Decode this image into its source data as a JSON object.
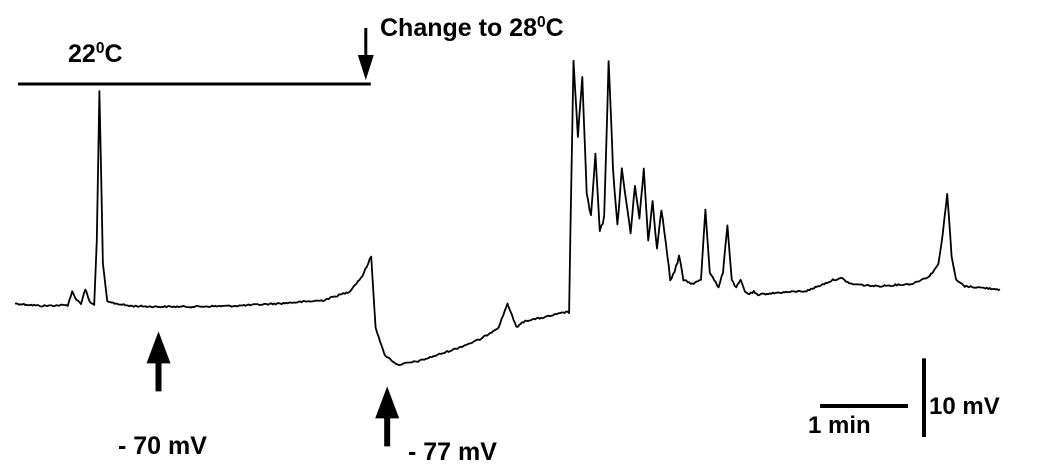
{
  "chart_data": {
    "type": "line",
    "title": "",
    "xlabel": "",
    "ylabel": "",
    "x_unit": "min",
    "y_unit": "mV",
    "x_range": [
      0,
      11.2
    ],
    "y_range": [
      -80,
      -37
    ],
    "temperature_periods": [
      {
        "label": "22",
        "label_unit": "C",
        "start": 0,
        "end": 4.0
      }
    ],
    "events": [
      {
        "label": "Change to 28",
        "label_unit": "C",
        "time": 4.0
      }
    ],
    "membrane_potential_marks": [
      {
        "label": "- 70 mV",
        "time": 1.7,
        "value": -70
      },
      {
        "label": "- 77 mV",
        "time": 4.3,
        "value": -77
      }
    ],
    "scale_bars": {
      "time": {
        "label": "1 min",
        "value": 1
      },
      "voltage": {
        "label": "10 mV",
        "value": 10
      }
    },
    "series": [
      {
        "x": [
          0,
          0.3,
          0.6,
          0.65,
          0.7,
          0.75,
          0.8,
          0.85,
          0.9,
          0.93,
          0.96,
          1.0,
          1.05,
          1.15,
          1.3,
          1.6,
          2.0,
          2.5,
          3.0,
          3.5,
          3.8,
          3.95,
          4.05,
          4.1,
          4.2,
          4.35,
          4.6,
          5.0,
          5.3,
          5.5,
          5.6,
          5.7,
          5.8,
          6.0,
          6.3,
          6.35,
          6.4,
          6.45,
          6.5,
          6.55,
          6.6,
          6.65,
          6.7,
          6.75,
          6.8,
          6.85,
          6.9,
          6.95,
          7.0,
          7.05,
          7.1,
          7.15,
          7.2,
          7.25,
          7.3,
          7.35,
          7.4,
          7.45,
          7.5,
          7.55,
          7.6,
          7.7,
          7.8,
          7.85,
          7.9,
          7.95,
          8.0,
          8.05,
          8.1,
          8.15,
          8.2,
          8.25,
          8.3,
          8.35,
          8.4,
          8.45,
          8.5,
          8.7,
          9.0,
          9.2,
          9.3,
          9.4,
          9.5,
          9.8,
          10.2,
          10.4,
          10.5,
          10.55,
          10.6,
          10.65,
          10.7,
          10.8,
          11.0,
          11.2
        ],
        "y": [
          -69,
          -69.3,
          -69.2,
          -67.5,
          -68.5,
          -69,
          -67.2,
          -68.8,
          -69.2,
          -61,
          -42,
          -64,
          -68.8,
          -69,
          -69.3,
          -69.4,
          -69.4,
          -69.3,
          -69,
          -68.6,
          -67.5,
          -65.5,
          -63,
          -72,
          -75.5,
          -76.8,
          -76.3,
          -74.8,
          -73.5,
          -72,
          -69,
          -72,
          -71.2,
          -70.8,
          -70,
          -38,
          -48,
          -40,
          -55,
          -58,
          -50,
          -60,
          -58,
          -38,
          -52,
          -59,
          -52,
          -56,
          -60,
          -54,
          -58,
          -52,
          -61,
          -56,
          -62,
          -57,
          -61,
          -66,
          -65,
          -63,
          -66,
          -66.5,
          -66,
          -57,
          -65,
          -66,
          -67,
          -65,
          -59,
          -66,
          -67,
          -66,
          -67.5,
          -67.8,
          -67.5,
          -68,
          -67.8,
          -67.6,
          -67.4,
          -66.5,
          -66,
          -65.8,
          -66.5,
          -66.8,
          -66.5,
          -65.5,
          -64,
          -60,
          -55,
          -63,
          -66,
          -66.8,
          -67,
          -67.2
        ]
      }
    ]
  }
}
